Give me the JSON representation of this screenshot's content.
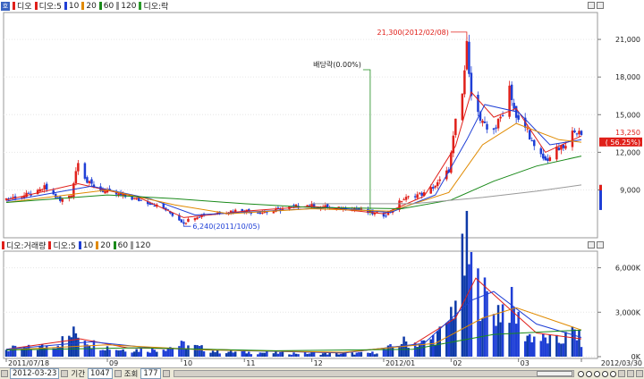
{
  "price_panel": {
    "corner_label": "호",
    "legend": [
      {
        "label": "디오",
        "color": "#e0201a"
      },
      {
        "label": "디오:5",
        "color": "#e0201a"
      },
      {
        "label": "10",
        "color": "#1f3fd6"
      },
      {
        "label": "20",
        "color": "#e08a00"
      },
      {
        "label": "60",
        "color": "#1a8a1a"
      },
      {
        "label": "120",
        "color": "#999999"
      },
      {
        "label": "디오:락",
        "color": "#2a9a2a"
      }
    ]
  },
  "volume_panel": {
    "legend": [
      {
        "label": "디오:거래량",
        "color": "#e0201a"
      },
      {
        "label": "디오:5",
        "color": "#e0201a"
      },
      {
        "label": "10",
        "color": "#1f3fd6"
      },
      {
        "label": "20",
        "color": "#e08a00"
      },
      {
        "label": "60",
        "color": "#1a8a1a"
      },
      {
        "label": "120",
        "color": "#999999"
      }
    ]
  },
  "chart_data": [
    {
      "type": "candlestick",
      "y_ticks": [
        "21,000",
        "18,000",
        "15,000",
        "12,000",
        "9,000"
      ],
      "y_tick_values": [
        21000,
        18000,
        15000,
        12000,
        9000
      ],
      "ylim": [
        5400,
        23000
      ],
      "x_tick_labels": [
        "2011/07/18",
        "09",
        "10",
        "11",
        "12",
        "2012/01",
        "02",
        "03",
        "2012/03/30"
      ],
      "x_tick_dates": [
        "2011-07-18",
        "2011-09-01",
        "2011-10-04",
        "2011-11-01",
        "2011-12-01",
        "2012-01-02",
        "2012-02-01",
        "2012-03-02",
        "2012-03-30"
      ],
      "xlim": [
        "2011-07-18",
        "2012-03-30"
      ],
      "annotations": [
        {
          "text": "21,300(2012/02/08)",
          "date": "2012-02-08",
          "value": 21300,
          "color": "#e0201a",
          "kind": "high"
        },
        {
          "text": "6,240(2011/10/05)",
          "date": "2011-10-05",
          "value": 6240,
          "color": "#1f3fd6",
          "kind": "low"
        },
        {
          "text": "배당락(0.00%)",
          "date": "2011-12-27",
          "color": "#1a8a1a",
          "kind": "event"
        }
      ],
      "last_price": "13,250",
      "last_change": "( 56.25%)",
      "price_path": [
        [
          "2011-07-18",
          8300
        ],
        [
          "2011-07-25",
          8500
        ],
        [
          "2011-08-01",
          8800
        ],
        [
          "2011-08-04",
          9200
        ],
        [
          "2011-08-08",
          8600
        ],
        [
          "2011-08-11",
          8100
        ],
        [
          "2011-08-16",
          8700
        ],
        [
          "2011-08-19",
          11400
        ],
        [
          "2011-08-23",
          9600
        ],
        [
          "2011-08-29",
          9000
        ],
        [
          "2011-09-02",
          8800
        ],
        [
          "2011-09-08",
          8500
        ],
        [
          "2011-09-15",
          8200
        ],
        [
          "2011-09-21",
          7900
        ],
        [
          "2011-09-27",
          7400
        ],
        [
          "2011-10-04",
          6500
        ],
        [
          "2011-10-05",
          6400
        ],
        [
          "2011-10-10",
          6900
        ],
        [
          "2011-10-17",
          7100
        ],
        [
          "2011-10-24",
          7300
        ],
        [
          "2011-10-31",
          7400
        ],
        [
          "2011-11-07",
          7200
        ],
        [
          "2011-11-14",
          7300
        ],
        [
          "2011-11-21",
          7600
        ],
        [
          "2011-11-28",
          7800
        ],
        [
          "2011-12-05",
          7700
        ],
        [
          "2011-12-12",
          7500
        ],
        [
          "2011-12-19",
          7600
        ],
        [
          "2011-12-26",
          7200
        ],
        [
          "2012-01-02",
          7000
        ],
        [
          "2012-01-06",
          7400
        ],
        [
          "2012-01-10",
          8200
        ],
        [
          "2012-01-16",
          8600
        ],
        [
          "2012-01-20",
          8700
        ],
        [
          "2012-01-26",
          9500
        ],
        [
          "2012-01-31",
          10600
        ],
        [
          "2012-02-03",
          14400
        ],
        [
          "2012-02-06",
          16600
        ],
        [
          "2012-02-08",
          20500
        ],
        [
          "2012-02-10",
          16800
        ],
        [
          "2012-02-14",
          14500
        ],
        [
          "2012-02-17",
          13800
        ],
        [
          "2012-02-21",
          14000
        ],
        [
          "2012-02-24",
          15200
        ],
        [
          "2012-02-27",
          17300
        ],
        [
          "2012-03-01",
          14600
        ],
        [
          "2012-03-06",
          13800
        ],
        [
          "2012-03-09",
          12300
        ],
        [
          "2012-03-14",
          11300
        ],
        [
          "2012-03-19",
          12200
        ],
        [
          "2012-03-23",
          12400
        ],
        [
          "2012-03-27",
          13900
        ],
        [
          "2012-03-30",
          13250
        ]
      ],
      "series": [
        {
          "name": "5",
          "color": "#e0201a",
          "points": [
            [
              "2011-07-18",
              8200
            ],
            [
              "2011-08-19",
              9500
            ],
            [
              "2011-09-15",
              8400
            ],
            [
              "2011-10-05",
              6800
            ],
            [
              "2011-11-01",
              7300
            ],
            [
              "2011-12-01",
              7700
            ],
            [
              "2012-01-02",
              7100
            ],
            [
              "2012-01-20",
              8500
            ],
            [
              "2012-02-03",
              12500
            ],
            [
              "2012-02-10",
              16800
            ],
            [
              "2012-02-20",
              14800
            ],
            [
              "2012-03-01",
              15500
            ],
            [
              "2012-03-14",
              12000
            ],
            [
              "2012-03-30",
              13300
            ]
          ]
        },
        {
          "name": "10",
          "color": "#1f3fd6",
          "points": [
            [
              "2011-07-18",
              8100
            ],
            [
              "2011-08-25",
              9300
            ],
            [
              "2011-09-20",
              8300
            ],
            [
              "2011-10-10",
              7000
            ],
            [
              "2011-11-10",
              7300
            ],
            [
              "2011-12-10",
              7600
            ],
            [
              "2012-01-05",
              7200
            ],
            [
              "2012-01-25",
              8600
            ],
            [
              "2012-02-08",
              13000
            ],
            [
              "2012-02-16",
              15800
            ],
            [
              "2012-03-02",
              15200
            ],
            [
              "2012-03-16",
              12600
            ],
            [
              "2012-03-30",
              13000
            ]
          ]
        },
        {
          "name": "20",
          "color": "#e08a00",
          "points": [
            [
              "2011-07-18",
              8000
            ],
            [
              "2011-09-01",
              9000
            ],
            [
              "2011-10-01",
              7800
            ],
            [
              "2011-10-25",
              7100
            ],
            [
              "2011-12-01",
              7500
            ],
            [
              "2012-01-05",
              7300
            ],
            [
              "2012-01-31",
              8800
            ],
            [
              "2012-02-15",
              12600
            ],
            [
              "2012-03-01",
              14300
            ],
            [
              "2012-03-20",
              13000
            ],
            [
              "2012-03-30",
              12800
            ]
          ]
        },
        {
          "name": "60",
          "color": "#1a8a1a",
          "points": [
            [
              "2011-07-18",
              8000
            ],
            [
              "2011-09-01",
              8600
            ],
            [
              "2011-10-01",
              8300
            ],
            [
              "2011-11-01",
              7900
            ],
            [
              "2011-12-01",
              7600
            ],
            [
              "2012-01-10",
              7500
            ],
            [
              "2012-02-01",
              8200
            ],
            [
              "2012-02-20",
              9700
            ],
            [
              "2012-03-10",
              10900
            ],
            [
              "2012-03-30",
              11700
            ]
          ]
        },
        {
          "name": "120",
          "color": "#999999",
          "points": [
            [
              "2011-12-01",
              7900
            ],
            [
              "2012-01-15",
              7900
            ],
            [
              "2012-02-15",
              8400
            ],
            [
              "2012-03-10",
              8900
            ],
            [
              "2012-03-30",
              9400
            ]
          ]
        }
      ]
    },
    {
      "type": "bar",
      "y_ticks": [
        "6,000K",
        "3,000K",
        "0K"
      ],
      "y_tick_values": [
        6000,
        3000,
        0
      ],
      "ylim": [
        0,
        7000
      ],
      "xlim": [
        "2011-07-18",
        "2012-03-30"
      ],
      "volume_path": [
        [
          "2011-07-18",
          500
        ],
        [
          "2011-08-01",
          600
        ],
        [
          "2011-08-10",
          900
        ],
        [
          "2011-08-19",
          1700
        ],
        [
          "2011-08-25",
          900
        ],
        [
          "2011-09-05",
          500
        ],
        [
          "2011-09-20",
          450
        ],
        [
          "2011-10-05",
          800
        ],
        [
          "2011-10-20",
          350
        ],
        [
          "2011-11-15",
          250
        ],
        [
          "2011-12-15",
          200
        ],
        [
          "2011-12-28",
          250
        ],
        [
          "2012-01-05",
          600
        ],
        [
          "2012-01-10",
          1000
        ],
        [
          "2012-01-20",
          900
        ],
        [
          "2012-01-30",
          1800
        ],
        [
          "2012-02-03",
          4200
        ],
        [
          "2012-02-08",
          6900
        ],
        [
          "2012-02-13",
          4600
        ],
        [
          "2012-02-20",
          3000
        ],
        [
          "2012-02-27",
          3600
        ],
        [
          "2012-03-05",
          1500
        ],
        [
          "2012-03-12",
          1200
        ],
        [
          "2012-03-20",
          1000
        ],
        [
          "2012-03-27",
          1700
        ],
        [
          "2012-03-30",
          1000
        ]
      ],
      "series": [
        {
          "name": "5",
          "color": "#e0201a",
          "points": [
            [
              "2011-07-18",
              500
            ],
            [
              "2011-08-20",
              1200
            ],
            [
              "2011-09-10",
              600
            ],
            [
              "2011-10-15",
              500
            ],
            [
              "2011-12-15",
              250
            ],
            [
              "2012-01-15",
              800
            ],
            [
              "2012-02-03",
              2600
            ],
            [
              "2012-02-12",
              5300
            ],
            [
              "2012-02-25",
              3500
            ],
            [
              "2012-03-10",
              1600
            ],
            [
              "2012-03-30",
              1200
            ]
          ]
        },
        {
          "name": "10",
          "color": "#1f3fd6",
          "points": [
            [
              "2011-07-18",
              500
            ],
            [
              "2011-08-25",
              1000
            ],
            [
              "2011-09-20",
              600
            ],
            [
              "2011-11-01",
              400
            ],
            [
              "2011-12-15",
              260
            ],
            [
              "2012-01-20",
              900
            ],
            [
              "2012-02-10",
              3800
            ],
            [
              "2012-02-20",
              4400
            ],
            [
              "2012-03-10",
              2200
            ],
            [
              "2012-03-30",
              1300
            ]
          ]
        },
        {
          "name": "20",
          "color": "#e08a00",
          "points": [
            [
              "2011-07-18",
              450
            ],
            [
              "2011-09-01",
              800
            ],
            [
              "2011-10-15",
              450
            ],
            [
              "2011-12-15",
              300
            ],
            [
              "2012-01-25",
              900
            ],
            [
              "2012-02-15",
              2600
            ],
            [
              "2012-03-01",
              3300
            ],
            [
              "2012-03-30",
              1800
            ]
          ]
        },
        {
          "name": "60",
          "color": "#1a8a1a",
          "points": [
            [
              "2011-07-18",
              450
            ],
            [
              "2011-09-15",
              600
            ],
            [
              "2011-11-15",
              400
            ],
            [
              "2012-01-15",
              500
            ],
            [
              "2012-02-20",
              1500
            ],
            [
              "2012-03-30",
              1800
            ]
          ]
        }
      ]
    }
  ],
  "toolbar": {
    "date_value": "2012-03-23",
    "period_label": "기간",
    "period_value": "1047",
    "query_label": "조회",
    "query_value": "177"
  }
}
